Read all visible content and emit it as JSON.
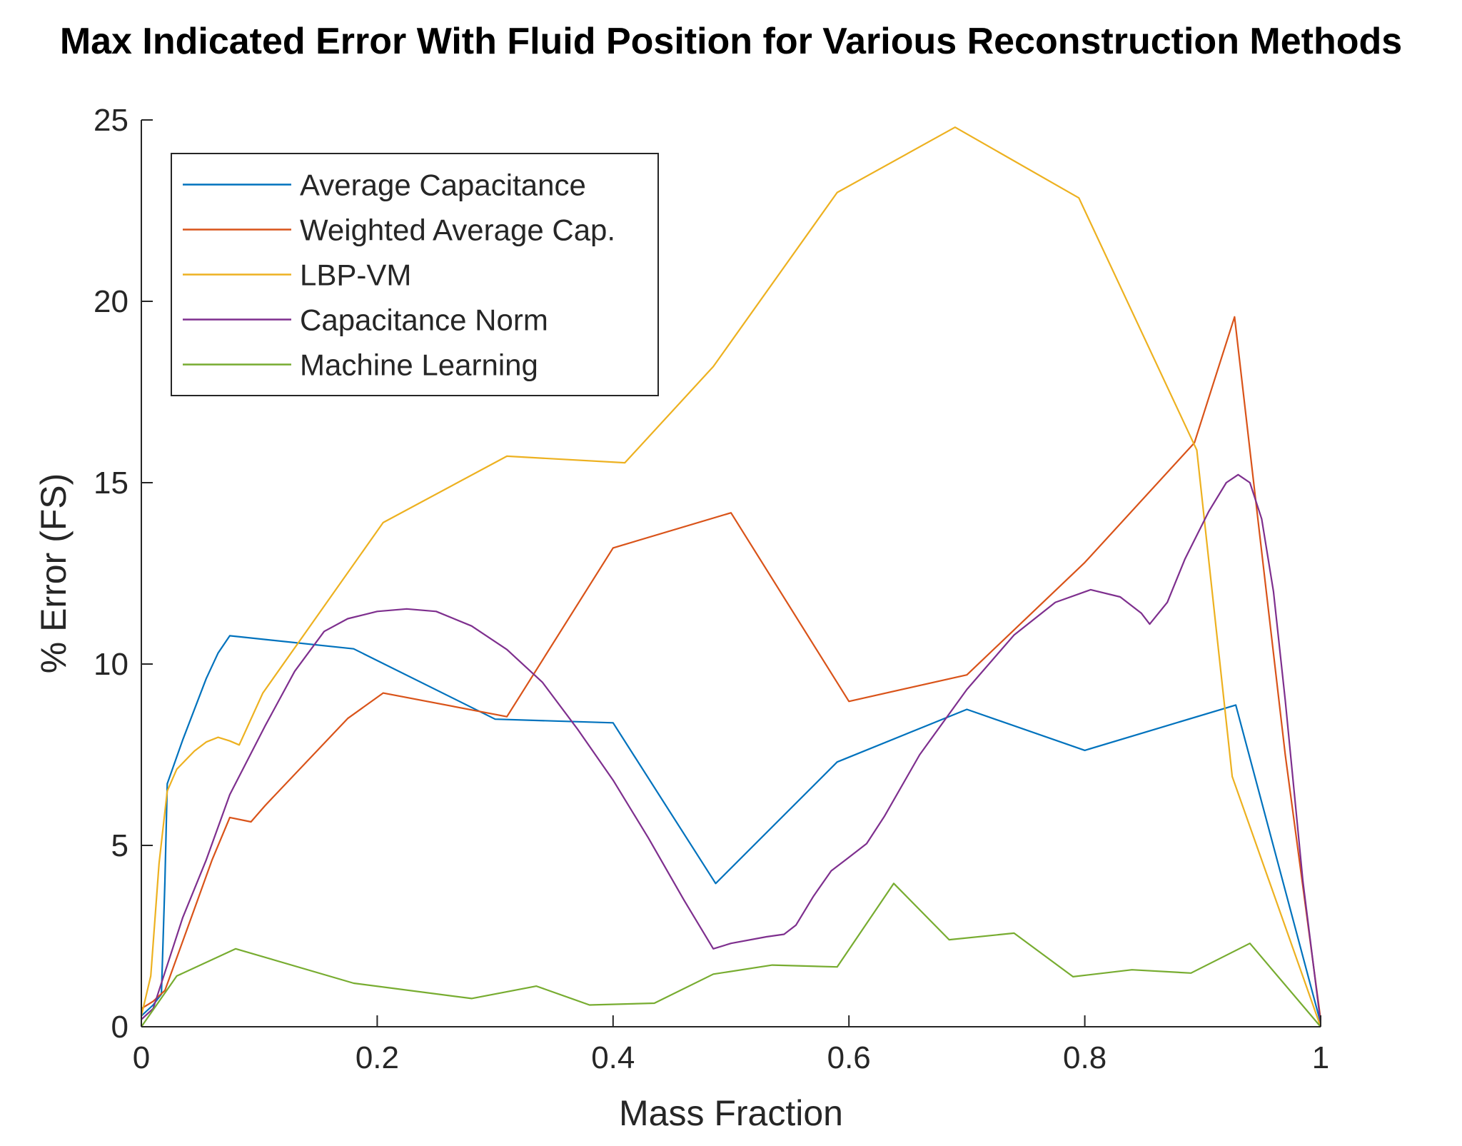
{
  "chart_data": {
    "type": "line",
    "title": "Max Indicated Error With Fluid Position for Various Reconstruction Methods",
    "xlabel": "Mass Fraction",
    "ylabel": "% Error (FS)",
    "xlim": [
      0,
      1
    ],
    "ylim": [
      0,
      25
    ],
    "xticks": [
      0,
      0.2,
      0.4,
      0.6,
      0.8,
      1
    ],
    "yticks": [
      0,
      5,
      10,
      15,
      20,
      25
    ],
    "xtick_labels": [
      "0",
      "0.2",
      "0.4",
      "0.6",
      "0.8",
      "1"
    ],
    "ytick_labels": [
      "0",
      "5",
      "10",
      "15",
      "20",
      "25"
    ],
    "grid": false,
    "legend_position": "top-left",
    "series": [
      {
        "name": "Average Capacitance",
        "color": "#0072BD",
        "points": [
          [
            0,
            0.3
          ],
          [
            0.01,
            0.6
          ],
          [
            0.017,
            0.9
          ],
          [
            0.02,
            4.0
          ],
          [
            0.022,
            6.7
          ],
          [
            0.035,
            7.9
          ],
          [
            0.055,
            9.6
          ],
          [
            0.065,
            10.3
          ],
          [
            0.075,
            10.78
          ],
          [
            0.18,
            10.42
          ],
          [
            0.3,
            8.48
          ],
          [
            0.4,
            8.38
          ],
          [
            0.487,
            3.95
          ],
          [
            0.59,
            7.3
          ],
          [
            0.7,
            8.75
          ],
          [
            0.8,
            7.62
          ],
          [
            0.928,
            8.87
          ],
          [
            1,
            0.1
          ]
        ]
      },
      {
        "name": "Weighted Average Cap.",
        "color": "#D95319",
        "points": [
          [
            0,
            0.5
          ],
          [
            0.01,
            0.7
          ],
          [
            0.02,
            1.0
          ],
          [
            0.04,
            2.8
          ],
          [
            0.06,
            4.6
          ],
          [
            0.075,
            5.77
          ],
          [
            0.093,
            5.65
          ],
          [
            0.105,
            6.1
          ],
          [
            0.175,
            8.5
          ],
          [
            0.205,
            9.2
          ],
          [
            0.31,
            8.55
          ],
          [
            0.4,
            13.2
          ],
          [
            0.5,
            14.17
          ],
          [
            0.6,
            8.97
          ],
          [
            0.7,
            9.7
          ],
          [
            0.8,
            12.8
          ],
          [
            0.893,
            16.1
          ],
          [
            0.927,
            19.57
          ],
          [
            0.945,
            14.5
          ],
          [
            0.97,
            7.5
          ],
          [
            1,
            0.2
          ]
        ]
      },
      {
        "name": "LBP-VM",
        "color": "#EDB120",
        "points": [
          [
            0,
            0.3
          ],
          [
            0.008,
            1.4
          ],
          [
            0.015,
            4.5
          ],
          [
            0.022,
            6.5
          ],
          [
            0.03,
            7.1
          ],
          [
            0.045,
            7.6
          ],
          [
            0.055,
            7.85
          ],
          [
            0.065,
            7.98
          ],
          [
            0.075,
            7.88
          ],
          [
            0.083,
            7.77
          ],
          [
            0.103,
            9.2
          ],
          [
            0.205,
            13.9
          ],
          [
            0.31,
            15.73
          ],
          [
            0.41,
            15.55
          ],
          [
            0.485,
            18.2
          ],
          [
            0.59,
            23.0
          ],
          [
            0.69,
            24.8
          ],
          [
            0.795,
            22.85
          ],
          [
            0.895,
            15.9
          ],
          [
            0.925,
            6.9
          ],
          [
            1,
            0
          ]
        ]
      },
      {
        "name": "Capacitance Norm",
        "color": "#7E2F8E",
        "points": [
          [
            0,
            0.2
          ],
          [
            0.01,
            0.5
          ],
          [
            0.02,
            1.5
          ],
          [
            0.035,
            3.0
          ],
          [
            0.055,
            4.6
          ],
          [
            0.075,
            6.4
          ],
          [
            0.105,
            8.3
          ],
          [
            0.13,
            9.8
          ],
          [
            0.155,
            10.9
          ],
          [
            0.175,
            11.25
          ],
          [
            0.2,
            11.45
          ],
          [
            0.225,
            11.52
          ],
          [
            0.25,
            11.45
          ],
          [
            0.28,
            11.05
          ],
          [
            0.31,
            10.4
          ],
          [
            0.34,
            9.5
          ],
          [
            0.37,
            8.2
          ],
          [
            0.4,
            6.8
          ],
          [
            0.43,
            5.2
          ],
          [
            0.46,
            3.5
          ],
          [
            0.485,
            2.15
          ],
          [
            0.5,
            2.3
          ],
          [
            0.53,
            2.48
          ],
          [
            0.545,
            2.55
          ],
          [
            0.555,
            2.8
          ],
          [
            0.57,
            3.6
          ],
          [
            0.585,
            4.3
          ],
          [
            0.598,
            4.62
          ],
          [
            0.615,
            5.05
          ],
          [
            0.63,
            5.8
          ],
          [
            0.66,
            7.5
          ],
          [
            0.7,
            9.3
          ],
          [
            0.74,
            10.8
          ],
          [
            0.775,
            11.7
          ],
          [
            0.805,
            12.05
          ],
          [
            0.83,
            11.85
          ],
          [
            0.848,
            11.4
          ],
          [
            0.855,
            11.1
          ],
          [
            0.87,
            11.7
          ],
          [
            0.885,
            12.9
          ],
          [
            0.905,
            14.2
          ],
          [
            0.92,
            15.0
          ],
          [
            0.93,
            15.22
          ],
          [
            0.94,
            15.0
          ],
          [
            0.95,
            14.0
          ],
          [
            0.96,
            12.0
          ],
          [
            0.97,
            9.0
          ],
          [
            0.985,
            4.0
          ],
          [
            1,
            0.1
          ]
        ]
      },
      {
        "name": "Machine Learning",
        "color": "#77AC30",
        "points": [
          [
            0,
            0
          ],
          [
            0.03,
            1.4
          ],
          [
            0.08,
            2.15
          ],
          [
            0.18,
            1.2
          ],
          [
            0.28,
            0.78
          ],
          [
            0.335,
            1.12
          ],
          [
            0.38,
            0.6
          ],
          [
            0.435,
            0.65
          ],
          [
            0.485,
            1.45
          ],
          [
            0.535,
            1.7
          ],
          [
            0.59,
            1.65
          ],
          [
            0.638,
            3.95
          ],
          [
            0.685,
            2.4
          ],
          [
            0.74,
            2.58
          ],
          [
            0.79,
            1.38
          ],
          [
            0.84,
            1.57
          ],
          [
            0.89,
            1.48
          ],
          [
            0.94,
            2.3
          ],
          [
            1,
            0
          ]
        ]
      }
    ]
  }
}
